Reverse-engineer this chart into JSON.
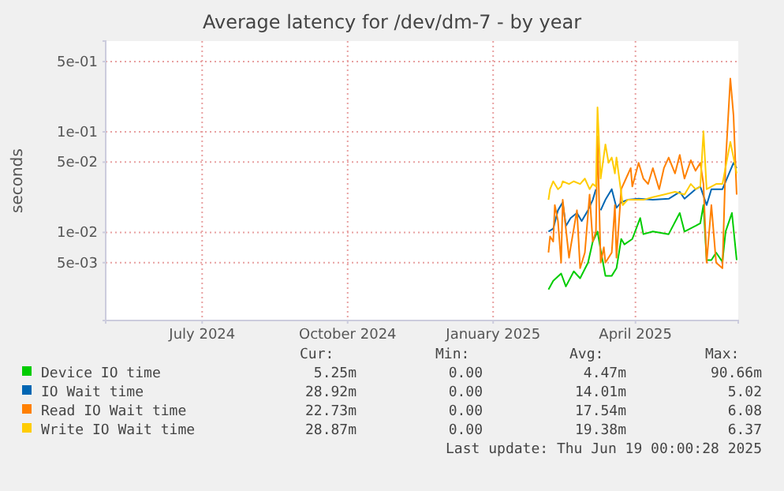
{
  "chart_data": {
    "type": "line",
    "title": "Average latency for /dev/dm-7 - by year",
    "ylabel": "seconds",
    "log": true,
    "grid": true,
    "legend": "bottom",
    "xlim": [
      "2024-05-01",
      "2025-06-05"
    ],
    "xticks": [
      {
        "value": "2024-07-01",
        "label": "July 2024"
      },
      {
        "value": "2024-10-01",
        "label": "October 2024"
      },
      {
        "value": "2025-01-01",
        "label": "January 2025"
      },
      {
        "value": "2025-04-01",
        "label": "April 2025"
      }
    ],
    "ylim": [
      0.00133,
      0.8
    ],
    "yticks": [
      {
        "value": 0.005,
        "label": "5e-03"
      },
      {
        "value": 0.01,
        "label": "1e-02"
      },
      {
        "value": 0.05,
        "label": "5e-02"
      },
      {
        "value": 0.1,
        "label": "1e-01"
      },
      {
        "value": 0.5,
        "label": "5e-01"
      }
    ],
    "series": [
      {
        "name": "Device IO time",
        "color": "#00cc00",
        "x": [
          "2025-02-05",
          "2025-02-08",
          "2025-02-13",
          "2025-02-16",
          "2025-02-21",
          "2025-02-25",
          "2025-03-02",
          "2025-03-05",
          "2025-03-08",
          "2025-03-10",
          "2025-03-13",
          "2025-03-17",
          "2025-03-20",
          "2025-03-23",
          "2025-03-25",
          "2025-03-30",
          "2025-04-04",
          "2025-04-06",
          "2025-04-12",
          "2025-04-22",
          "2025-04-29",
          "2025-05-02",
          "2025-05-09",
          "2025-05-12",
          "2025-05-14",
          "2025-05-16",
          "2025-05-19",
          "2025-05-22",
          "2025-05-26",
          "2025-05-28",
          "2025-06-01",
          "2025-06-04"
        ],
        "values": [
          0.0027,
          0.0033,
          0.0039,
          0.0029,
          0.0041,
          0.0035,
          0.005,
          0.0081,
          0.0102,
          0.0067,
          0.0037,
          0.0037,
          0.0044,
          0.0086,
          0.0076,
          0.0086,
          0.0139,
          0.0096,
          0.0102,
          0.0096,
          0.0156,
          0.0102,
          0.0116,
          0.0123,
          0.0187,
          0.0053,
          0.0053,
          0.0063,
          0.0051,
          0.0102,
          0.0156,
          0.0053
        ]
      },
      {
        "name": "IO Wait time",
        "color": "#0066b3",
        "x": [
          "2025-02-05",
          "2025-02-08",
          "2025-02-11",
          "2025-02-14",
          "2025-02-16",
          "2025-02-19",
          "2025-02-23",
          "2025-02-26",
          "2025-03-02",
          "2025-03-05",
          "2025-03-07",
          "2025-03-08",
          "2025-03-10",
          "2025-03-13",
          "2025-03-17",
          "2025-03-20",
          "2025-03-23",
          "2025-03-27",
          "2025-04-03",
          "2025-04-12",
          "2025-04-22",
          "2025-04-29",
          "2025-05-02",
          "2025-05-09",
          "2025-05-12",
          "2025-05-16",
          "2025-05-19",
          "2025-05-26",
          "2025-06-02",
          "2025-06-04"
        ],
        "values": [
          0.0102,
          0.0109,
          0.0166,
          0.0199,
          0.0116,
          0.0139,
          0.0156,
          0.013,
          0.0166,
          0.0211,
          0.0269,
          null,
          0.0166,
          0.0211,
          0.0269,
          0.0176,
          0.0199,
          0.0211,
          0.0216,
          0.0211,
          0.0216,
          0.0253,
          0.0216,
          0.0269,
          0.0286,
          0.0187,
          0.0269,
          0.0269,
          0.0492,
          0.0436
        ]
      },
      {
        "name": "Read IO Wait time",
        "color": "#ff8000",
        "x": [
          "2025-02-05",
          "2025-02-06",
          "2025-02-08",
          "2025-02-09",
          "2025-02-11",
          "2025-02-13",
          "2025-02-14",
          "2025-02-18",
          "2025-02-19",
          "2025-02-23",
          "2025-02-25",
          "2025-02-28",
          "2025-03-03",
          "2025-03-05",
          "2025-03-07",
          "2025-03-08",
          "2025-03-10",
          "2025-03-12",
          "2025-03-13",
          "2025-03-17",
          "2025-03-19",
          "2025-03-20",
          "2025-03-23",
          "2025-03-26",
          "2025-03-29",
          "2025-03-30",
          "2025-04-03",
          "2025-04-06",
          "2025-04-09",
          "2025-04-12",
          "2025-04-16",
          "2025-04-19",
          "2025-04-22",
          "2025-04-26",
          "2025-04-29",
          "2025-05-02",
          "2025-05-06",
          "2025-05-09",
          "2025-05-12",
          "2025-05-14",
          "2025-05-16",
          "2025-05-19",
          "2025-05-22",
          "2025-05-26",
          "2025-05-28",
          "2025-05-31",
          "2025-06-02",
          "2025-06-04"
        ],
        "values": [
          0.0063,
          0.0091,
          0.0081,
          0.0187,
          0.013,
          0.005,
          0.0211,
          0.0056,
          0.0071,
          0.0166,
          0.0044,
          0.0063,
          0.0238,
          0.0081,
          0.0102,
          0.09,
          0.005,
          0.0071,
          0.005,
          0.0063,
          0.0187,
          0.0056,
          0.0269,
          0.0343,
          0.0436,
          0.0286,
          0.0492,
          0.0343,
          0.0303,
          0.0436,
          0.0269,
          0.0436,
          0.0555,
          0.0386,
          0.0589,
          0.0343,
          0.0522,
          0.041,
          0.0492,
          0.0303,
          0.005,
          0.0187,
          0.005,
          0.0044,
          0.0492,
          0.339,
          0.146,
          0.0238
        ]
      },
      {
        "name": "Write IO Wait time",
        "color": "#ffcc00",
        "x": [
          "2025-02-05",
          "2025-02-06",
          "2025-02-08",
          "2025-02-11",
          "2025-02-13",
          "2025-02-14",
          "2025-02-18",
          "2025-02-21",
          "2025-02-25",
          "2025-02-28",
          "2025-03-03",
          "2025-03-05",
          "2025-03-07",
          "2025-03-08",
          "2025-03-10",
          "2025-03-13",
          "2025-03-15",
          "2025-03-17",
          "2025-03-19",
          "2025-03-20",
          "2025-03-22",
          "2025-03-24",
          "2025-03-27",
          "2025-03-30",
          "2025-04-06",
          "2025-04-12",
          "2025-04-19",
          "2025-04-26",
          "2025-05-02",
          "2025-05-06",
          "2025-05-09",
          "2025-05-12",
          "2025-05-14",
          "2025-05-16",
          "2025-05-19",
          "2025-05-22",
          "2025-05-26",
          "2025-05-31",
          "2025-06-02",
          "2025-06-04"
        ],
        "values": [
          0.0211,
          0.0269,
          0.0322,
          0.0269,
          0.0286,
          0.0322,
          0.0303,
          0.0322,
          0.0303,
          0.0343,
          0.0269,
          0.0303,
          0.0286,
          0.175,
          0.0343,
          0.075,
          0.0492,
          0.0555,
          0.0386,
          0.0555,
          0.0322,
          0.0187,
          0.0211,
          0.0211,
          0.0211,
          0.0224,
          0.0238,
          0.0253,
          0.0238,
          0.0303,
          0.0269,
          0.0286,
          0.1013,
          0.0269,
          0.0286,
          0.0303,
          0.0303,
          0.0796,
          0.0555,
          0.0386
        ]
      }
    ],
    "annotations": [
      "Cur:",
      "Min:",
      "Avg:",
      "Max:",
      "5.25m",
      "0.00",
      "4.47m",
      "90.66m",
      "28.92m",
      "0.00",
      "14.01m",
      "5.02",
      "22.73m",
      "0.00",
      "17.54m",
      "6.08",
      "28.87m",
      "0.00",
      "19.38m",
      "6.37",
      "Last update: Thu Jun 19 00:00:28 2025"
    ]
  }
}
